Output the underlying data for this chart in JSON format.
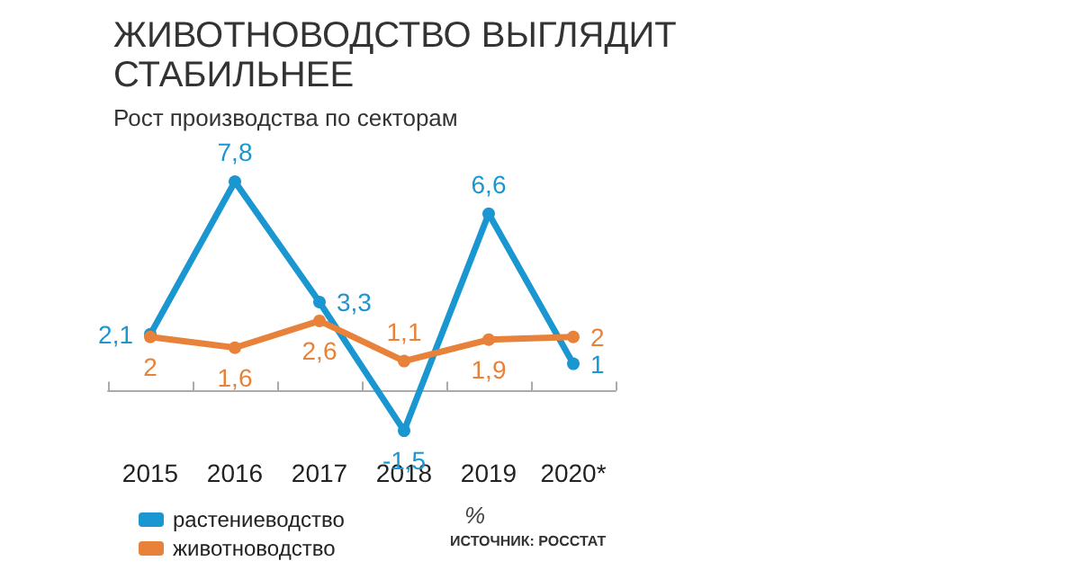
{
  "chart_data": {
    "type": "line",
    "title": "ЖИВОТНОВОДСТВО ВЫГЛЯДИТ\nСТАБИЛЬНЕЕ",
    "subtitle": "Рост производства по секторам",
    "categories": [
      "2015",
      "2016",
      "2017",
      "2018",
      "2019",
      "2020*"
    ],
    "series": [
      {
        "name": "растениеводство",
        "color": "#1a96d0",
        "values": [
          2.1,
          7.8,
          3.3,
          -1.5,
          6.6,
          1
        ],
        "value_labels": [
          "2,1",
          "7,8",
          "3,3",
          "-1,5",
          "6,6",
          "1"
        ]
      },
      {
        "name": "животноводство",
        "color": "#e8823a",
        "values": [
          2,
          1.6,
          2.6,
          1.1,
          1.9,
          2
        ],
        "value_labels": [
          "2",
          "1,6",
          "2,6",
          "1,1",
          "1,9",
          "2"
        ]
      }
    ],
    "tick_labels": "x",
    "legend": "bottom left",
    "marker": "circle",
    "line_style": "solid",
    "grid": false,
    "annotations": [
      "%",
      "ИСТОЧНИК: РОССТАТ"
    ]
  }
}
